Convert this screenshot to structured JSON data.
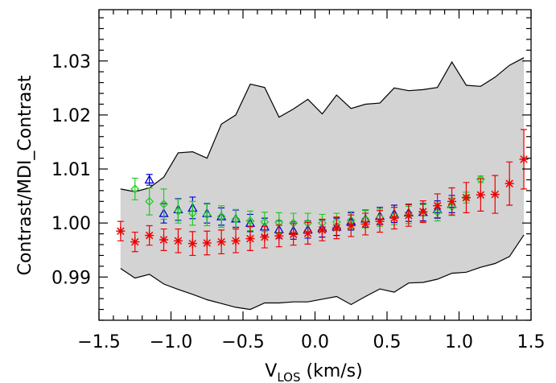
{
  "chart_data": {
    "type": "scatter",
    "title": "",
    "xlabel": "V",
    "xlabel_sub": "LOS",
    "xlabel_unit": " (km/s)",
    "ylabel": "Contrast/MDI_Contrast",
    "xlim": [
      -1.5,
      1.5
    ],
    "ylim": [
      0.982,
      1.0395
    ],
    "x_ticks": [
      -1.5,
      -1.0,
      -0.5,
      0.0,
      0.5,
      1.0,
      1.5
    ],
    "x_tick_labels": [
      "−1.5",
      "−1.0",
      "−0.5",
      "0.0",
      "0.5",
      "1.0",
      "1.5"
    ],
    "y_ticks": [
      0.99,
      1.0,
      1.01,
      1.02,
      1.03
    ],
    "y_tick_labels": [
      "0.99",
      "1.00",
      "1.01",
      "1.02",
      "1.03"
    ],
    "grid": false,
    "band": {
      "color": "#d3d3d3",
      "x": [
        -1.35,
        -1.25,
        -1.15,
        -1.05,
        -0.95,
        -0.85,
        -0.75,
        -0.65,
        -0.55,
        -0.45,
        -0.35,
        -0.25,
        -0.15,
        -0.05,
        0.05,
        0.15,
        0.25,
        0.35,
        0.45,
        0.55,
        0.65,
        0.75,
        0.85,
        0.95,
        1.05,
        1.15,
        1.25,
        1.35,
        1.45
      ],
      "upper": [
        1.0063,
        1.0058,
        1.0065,
        1.0085,
        1.013,
        1.0132,
        1.012,
        1.0183,
        1.02,
        1.0257,
        1.0251,
        1.0196,
        1.0211,
        1.0229,
        1.0202,
        1.0237,
        1.0212,
        1.022,
        1.0222,
        1.025,
        1.0245,
        1.0247,
        1.0251,
        1.0298,
        1.0255,
        1.0253,
        1.027,
        1.0292,
        1.0306
      ],
      "lower": [
        0.9916,
        0.9898,
        0.9905,
        0.9887,
        0.9877,
        0.9868,
        0.9858,
        0.9851,
        0.9844,
        0.984,
        0.9852,
        0.9852,
        0.9854,
        0.9854,
        0.9859,
        0.9864,
        0.9849,
        0.9864,
        0.9878,
        0.9872,
        0.9889,
        0.989,
        0.9896,
        0.9907,
        0.9909,
        0.9918,
        0.9925,
        0.9938,
        0.9978
      ]
    },
    "series": [
      {
        "marker": "star",
        "color": "#ee0000",
        "x": [
          -1.35,
          -1.25,
          -1.15,
          -1.05,
          -0.95,
          -0.85,
          -0.75,
          -0.65,
          -0.55,
          -0.45,
          -0.35,
          -0.25,
          -0.15,
          -0.05,
          0.05,
          0.15,
          0.25,
          0.35,
          0.45,
          0.55,
          0.65,
          0.75,
          0.85,
          0.95,
          1.05,
          1.15,
          1.25,
          1.35,
          1.45
        ],
        "y": [
          0.9985,
          0.9965,
          0.9977,
          0.9969,
          0.9967,
          0.9962,
          0.9963,
          0.9965,
          0.9967,
          0.9971,
          0.9974,
          0.9976,
          0.9979,
          0.9981,
          0.9987,
          0.9991,
          0.9995,
          0.9998,
          1.0003,
          1.0009,
          1.0014,
          1.0021,
          1.0032,
          1.004,
          1.0047,
          1.0052,
          1.0053,
          1.0073,
          1.0118
        ],
        "err": [
          0.0018,
          0.0018,
          0.0018,
          0.002,
          0.0022,
          0.0022,
          0.0022,
          0.0022,
          0.0022,
          0.0022,
          0.002,
          0.002,
          0.002,
          0.002,
          0.002,
          0.002,
          0.002,
          0.002,
          0.002,
          0.002,
          0.002,
          0.002,
          0.0022,
          0.0025,
          0.0028,
          0.003,
          0.0035,
          0.004,
          0.0055
        ]
      },
      {
        "marker": "diamond",
        "color": "#22cc22",
        "x": [
          -1.25,
          -1.15,
          -1.05,
          -0.95,
          -0.85,
          -0.75,
          -0.65,
          -0.55,
          -0.45,
          -0.35,
          -0.25,
          -0.15,
          -0.05,
          0.05,
          0.15,
          0.25,
          0.35,
          0.45,
          0.55,
          0.65,
          0.75,
          0.85,
          0.95,
          1.05,
          1.15
        ],
        "y": [
          1.0063,
          1.004,
          1.0035,
          1.0022,
          1.0018,
          1.0015,
          1.0012,
          1.0007,
          1.0004,
          1.0002,
          1.0001,
          1.0,
          1.0,
          1.0,
          1.0002,
          1.0005,
          1.0007,
          1.001,
          1.0013,
          1.0015,
          1.0018,
          1.002,
          1.003,
          1.0047,
          1.0081
        ],
        "err": [
          0.002,
          0.0025,
          0.0028,
          0.0022,
          0.0022,
          0.002,
          0.002,
          0.0018,
          0.0018,
          0.0018,
          0.0018,
          0.0018,
          0.0018,
          0.0016,
          0.0016,
          0.0016,
          0.0016,
          0.0016,
          0.0016,
          0.0016,
          0.0016,
          0.0016,
          0.0016,
          0.001,
          0.0006
        ]
      },
      {
        "marker": "triangle",
        "color": "#0000dd",
        "x": [
          -1.15,
          -1.05,
          -0.95,
          -0.85,
          -0.75,
          -0.65,
          -0.55,
          -0.45,
          -0.35,
          -0.25,
          -0.15,
          -0.05,
          0.05,
          0.15,
          0.25,
          0.35,
          0.45,
          0.55,
          0.65,
          0.75,
          0.85,
          0.95
        ],
        "y": [
          1.008,
          1.0018,
          1.0025,
          1.0028,
          1.0018,
          1.0012,
          1.0008,
          1.0,
          0.9993,
          0.9988,
          0.9986,
          0.9988,
          0.999,
          0.9993,
          1.0003,
          1.0008,
          1.0013,
          1.0017,
          1.0019,
          1.002,
          1.0025,
          1.0035
        ],
        "err": [
          0.001,
          0.0018,
          0.002,
          0.002,
          0.0018,
          0.0016,
          0.0016,
          0.0016,
          0.0016,
          0.0016,
          0.0016,
          0.0016,
          0.0016,
          0.0016,
          0.0016,
          0.0016,
          0.0016,
          0.0016,
          0.0016,
          0.0016,
          0.0016,
          0.0016
        ]
      }
    ]
  }
}
